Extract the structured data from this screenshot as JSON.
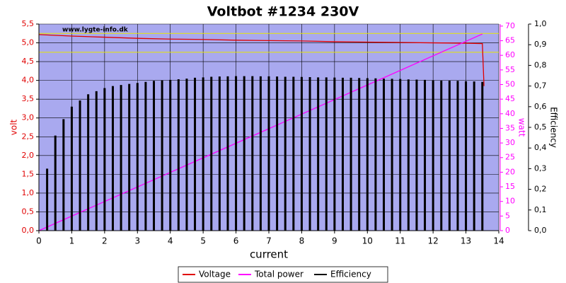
{
  "chart_data": {
    "type": "line",
    "title": "Voltbot #1234 230V",
    "watermark": "www.lygte-info.dk",
    "xlabel": "current",
    "ylabel": "volt",
    "y2label": "watt",
    "y3label": "Efficiency",
    "xlim": [
      0,
      14
    ],
    "xticks": [
      0,
      1,
      2,
      3,
      4,
      5,
      6,
      7,
      8,
      9,
      10,
      11,
      12,
      13,
      14
    ],
    "ylim": [
      0,
      5.5
    ],
    "yticks": [
      {
        "value": 0,
        "label": "0,0"
      },
      {
        "value": 0.5,
        "label": "0,5"
      },
      {
        "value": 1,
        "label": "1,0"
      },
      {
        "value": 1.5,
        "label": "1,5"
      },
      {
        "value": 2,
        "label": "2,0"
      },
      {
        "value": 2.5,
        "label": "2,5"
      },
      {
        "value": 3,
        "label": "3,0"
      },
      {
        "value": 3.5,
        "label": "3,5"
      },
      {
        "value": 4,
        "label": "4,0"
      },
      {
        "value": 4.5,
        "label": "4,5"
      },
      {
        "value": 5,
        "label": "5,0"
      },
      {
        "value": 5.5,
        "label": "5,5"
      }
    ],
    "y2lim": [
      0,
      70.7
    ],
    "y2ticks": [
      0,
      5,
      10,
      15,
      20,
      25,
      30,
      35,
      40,
      45,
      50,
      55,
      60,
      65,
      70
    ],
    "y3lim": [
      0,
      1
    ],
    "y3ticks": [
      {
        "value": 0,
        "label": "0,0"
      },
      {
        "value": 0.1,
        "label": "0,1"
      },
      {
        "value": 0.2,
        "label": "0,2"
      },
      {
        "value": 0.3,
        "label": "0,3"
      },
      {
        "value": 0.4,
        "label": "0,4"
      },
      {
        "value": 0.5,
        "label": "0,5"
      },
      {
        "value": 0.6,
        "label": "0,6"
      },
      {
        "value": 0.7,
        "label": "0,7"
      },
      {
        "value": 0.8,
        "label": "0,8"
      },
      {
        "value": 0.9,
        "label": "0,9"
      },
      {
        "value": 1,
        "label": "1,0"
      }
    ],
    "grid": true,
    "reference_lines": [
      5.25,
      4.75
    ],
    "reference_color": "#e8e800",
    "series": [
      {
        "name": "Voltage",
        "color": "#e00000",
        "axis": "y",
        "style": "line",
        "x": [
          0,
          1,
          2,
          3,
          4,
          5,
          6,
          7,
          8,
          9,
          10,
          11,
          12,
          13,
          13.5,
          13.55
        ],
        "values": [
          5.22,
          5.18,
          5.15,
          5.12,
          5.1,
          5.09,
          5.07,
          5.06,
          5.05,
          5.03,
          5.02,
          5.01,
          5.0,
          4.99,
          4.98,
          3.85
        ]
      },
      {
        "name": "Total power",
        "color": "#ff00ff",
        "axis": "y2",
        "style": "line",
        "x": [
          0,
          13.5
        ],
        "values": [
          0,
          67.3
        ]
      },
      {
        "name": "Efficiency",
        "color": "#000000",
        "axis": "y3",
        "style": "spikes",
        "x": [
          0.25,
          0.5,
          0.75,
          1,
          1.25,
          1.5,
          1.75,
          2,
          2.25,
          2.5,
          2.75,
          3,
          3.25,
          3.5,
          3.75,
          4,
          4.25,
          4.5,
          4.75,
          5,
          5.25,
          5.5,
          5.75,
          6,
          6.25,
          6.5,
          6.75,
          7,
          7.25,
          7.5,
          7.75,
          8,
          8.25,
          8.5,
          8.75,
          9,
          9.25,
          9.5,
          9.75,
          10,
          10.25,
          10.5,
          10.75,
          11,
          11.25,
          11.5,
          11.75,
          12,
          12.25,
          12.5,
          12.75,
          13,
          13.25,
          13.5
        ],
        "values": [
          0.3,
          0.46,
          0.54,
          0.6,
          0.63,
          0.66,
          0.675,
          0.69,
          0.7,
          0.705,
          0.71,
          0.715,
          0.72,
          0.725,
          0.728,
          0.73,
          0.733,
          0.736,
          0.74,
          0.742,
          0.745,
          0.746,
          0.747,
          0.748,
          0.748,
          0.748,
          0.747,
          0.747,
          0.746,
          0.745,
          0.745,
          0.744,
          0.743,
          0.742,
          0.742,
          0.741,
          0.74,
          0.74,
          0.739,
          0.738,
          0.737,
          0.736,
          0.735,
          0.734,
          0.732,
          0.731,
          0.73,
          0.728,
          0.727,
          0.726,
          0.725,
          0.723,
          0.722,
          0.72
        ]
      }
    ]
  }
}
